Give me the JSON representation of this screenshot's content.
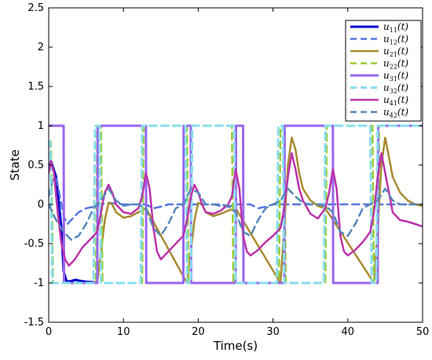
{
  "chart_data": {
    "type": "line",
    "title": "",
    "xlabel": "Time(s)",
    "ylabel": "State",
    "xlim": [
      0,
      50
    ],
    "ylim": [
      -1.5,
      2.5
    ],
    "xticks": [
      "0",
      "10",
      "20",
      "30",
      "40",
      "50"
    ],
    "yticks": [
      "-1.5",
      "-1",
      "-0.5",
      "0",
      "0.5",
      "1",
      "1.5",
      "2",
      "2.5"
    ],
    "grid": false,
    "legend_position": "top-right",
    "series": [
      {
        "name": "u11(t)",
        "label_base": "u",
        "label_sub": "11",
        "label_suffix": "(t)",
        "color": "#0000cc",
        "dash": "solid",
        "width": 3,
        "x": [
          0,
          0.3,
          1.0,
          1.7,
          2.0,
          2.4,
          2.8,
          3.2,
          3.6,
          4.0,
          5.0,
          6.0
        ],
        "y": [
          0.45,
          0.55,
          0.35,
          -0.3,
          -0.85,
          -0.98,
          -0.98,
          -0.97,
          -0.96,
          -0.97,
          -0.985,
          -0.99
        ]
      },
      {
        "name": "u12(t)",
        "label_base": "u",
        "label_sub": "12",
        "label_suffix": "(t)",
        "color": "#5577dd",
        "dash": "dashed",
        "width": 2.5,
        "x": [
          0,
          0.5,
          1.0,
          1.5,
          2.0,
          2.5,
          3.0,
          4.0,
          5.0,
          6.0,
          7.0,
          8.0,
          9.0,
          10.0,
          11.0,
          12.0,
          13.0,
          14.0,
          15.0,
          16.0,
          17.0,
          18.0,
          19.0,
          20.0,
          21.0,
          22.0,
          23.0,
          24.0,
          25.0,
          26.0,
          27.0,
          28.0,
          29.0,
          30.0,
          31.0,
          32.0,
          33.0,
          34.0,
          35.0,
          36.0,
          37.0,
          38.0,
          39.0,
          40.0,
          41.0,
          42.0,
          43.0,
          44.0,
          45.0,
          46.0,
          47.0,
          48.0,
          49.0,
          50.0
        ],
        "y": [
          0.1,
          0.3,
          0.35,
          0.1,
          -0.15,
          -0.25,
          -0.2,
          -0.1,
          -0.05,
          -0.03,
          0.0,
          0.02,
          0.01,
          0.0,
          0.0,
          0.0,
          0.0,
          -0.05,
          -0.03,
          0.0,
          0.0,
          0.0,
          0.0,
          0.0,
          0.0,
          0.0,
          -0.02,
          -0.03,
          0.0,
          0.0,
          0.0,
          -0.05,
          -0.03,
          0.0,
          0.0,
          0.0,
          0.0,
          0.0,
          0.0,
          0.0,
          0.0,
          0.0,
          0.0,
          0.0,
          0.0,
          0.0,
          0.0,
          0.0,
          0.0,
          0.0,
          0.0,
          0.0,
          0.0,
          0.0
        ]
      },
      {
        "name": "u21(t)",
        "label_base": "u",
        "label_sub": "21",
        "label_suffix": "(t)",
        "color": "#a88a30",
        "dash": "solid",
        "width": 2.5,
        "x": [
          6.5,
          7.0,
          7.5,
          8.0,
          8.5,
          9.0,
          10.0,
          11.0,
          12.0,
          13.0,
          18.5,
          19.0,
          19.5,
          20.0,
          20.5,
          21.0,
          22.0,
          23.0,
          24.0,
          25.0,
          31.0,
          31.5,
          32.0,
          32.5,
          33.0,
          33.5,
          34.0,
          35.0,
          36.0,
          37.0,
          43.5,
          44.0,
          44.5,
          45.0,
          45.5,
          46.0,
          47.0,
          48.0,
          49.0,
          50.0
        ],
        "y": [
          -1.0,
          -0.6,
          -0.2,
          0.02,
          0.0,
          -0.1,
          -0.17,
          -0.15,
          -0.1,
          -0.05,
          -1.0,
          -0.6,
          -0.2,
          0.02,
          0.0,
          -0.1,
          -0.15,
          -0.12,
          -0.08,
          -0.05,
          -1.0,
          -0.3,
          0.5,
          0.85,
          0.7,
          0.4,
          0.2,
          0.05,
          -0.02,
          -0.05,
          -1.0,
          -0.3,
          0.5,
          0.85,
          0.6,
          0.35,
          0.15,
          0.05,
          0.0,
          -0.02
        ]
      },
      {
        "name": "u22(t)",
        "label_base": "u",
        "label_sub": "22",
        "label_suffix": "(t)",
        "color": "#99cc33",
        "dash": "dashed",
        "width": 2.5,
        "x": [
          0,
          0.3,
          0.6,
          1.0,
          6.3,
          6.5,
          7.0,
          7.2,
          12.5,
          12.7,
          18.5,
          18.7,
          19.0,
          19.2,
          24.5,
          24.7,
          30.8,
          31.0,
          31.5,
          31.7,
          37.0,
          37.2,
          43.3,
          43.5,
          44.0,
          44.2,
          50.0
        ],
        "y": [
          0.8,
          0.8,
          -1.0,
          -1.0,
          -1.0,
          1.0,
          1.0,
          -1.0,
          -1.0,
          1.0,
          1.0,
          -1.0,
          -1.0,
          1.0,
          1.0,
          -1.0,
          -1.0,
          1.0,
          1.0,
          -1.0,
          -1.0,
          1.0,
          1.0,
          -1.0,
          -1.0,
          1.0,
          1.0
        ]
      },
      {
        "name": "u31(t)",
        "label_base": "u",
        "label_sub": "31",
        "label_suffix": "(t)",
        "color": "#9966ee",
        "dash": "solid",
        "width": 3,
        "x": [
          0,
          0.05,
          2.0,
          2.05,
          6.5,
          6.55,
          12.0,
          12.05,
          13.0,
          13.05,
          18.0,
          18.05,
          19.0,
          19.05,
          25.0,
          25.05,
          26.0,
          26.05,
          31.5,
          31.55,
          32.0,
          32.05,
          37.0,
          37.05,
          38.0,
          38.05,
          44.0,
          44.05,
          50.0
        ],
        "y": [
          1.0,
          1.0,
          1.0,
          -1.0,
          -1.0,
          1.0,
          1.0,
          1.0,
          1.0,
          -1.0,
          -1.0,
          1.0,
          1.0,
          -1.0,
          -1.0,
          1.0,
          1.0,
          -1.0,
          -1.0,
          1.0,
          1.0,
          1.0,
          1.0,
          1.0,
          1.0,
          -1.0,
          -1.0,
          1.0,
          1.0
        ]
      },
      {
        "name": "u32(t)",
        "label_base": "u",
        "label_sub": "32",
        "label_suffix": "(t)",
        "color": "#88ddee",
        "dash": "dashed",
        "width": 3,
        "x": [
          0,
          0.2,
          0.5,
          1.0,
          6.0,
          6.2,
          6.8,
          7.0,
          12.3,
          12.5,
          18.3,
          18.5,
          19.0,
          19.2,
          24.8,
          25.0,
          30.5,
          30.7,
          31.3,
          31.5,
          36.8,
          37.0,
          43.0,
          43.2,
          43.8,
          44.0,
          50.0
        ],
        "y": [
          0.8,
          0.8,
          -1.0,
          -1.0,
          -1.0,
          1.0,
          1.0,
          -1.0,
          -1.0,
          1.0,
          1.0,
          -1.0,
          -1.0,
          1.0,
          1.0,
          -1.0,
          -1.0,
          1.0,
          1.0,
          -1.0,
          -1.0,
          1.0,
          1.0,
          -1.0,
          -1.0,
          1.0,
          1.0
        ]
      },
      {
        "name": "u41(t)",
        "label_base": "u",
        "label_sub": "41",
        "label_suffix": "(t)",
        "color": "#bb33aa",
        "dash": "solid",
        "width": 2.5,
        "x": [
          0,
          0.3,
          0.7,
          1.2,
          1.7,
          2.2,
          2.7,
          3.5,
          4.5,
          5.5,
          6.5,
          7.0,
          7.5,
          8.0,
          8.5,
          9.0,
          10.0,
          11.0,
          12.0,
          12.5,
          13.0,
          13.5,
          14.0,
          14.5,
          15.0,
          16.0,
          17.0,
          18.0,
          18.5,
          19.0,
          19.5,
          20.0,
          20.5,
          21.0,
          22.0,
          23.0,
          24.0,
          24.5,
          25.0,
          25.5,
          26.0,
          26.5,
          27.0,
          28.0,
          29.0,
          30.0,
          31.0,
          31.5,
          32.0,
          32.5,
          33.0,
          33.5,
          34.0,
          35.0,
          36.0,
          37.0,
          37.5,
          38.0,
          38.5,
          39.0,
          39.5,
          40.0,
          41.0,
          42.0,
          43.0,
          43.5,
          44.0,
          44.5,
          45.0,
          45.5,
          46.0,
          47.0,
          48.0,
          49.0,
          50.0
        ],
        "y": [
          0.4,
          0.55,
          0.4,
          -0.1,
          -0.5,
          -0.7,
          -0.78,
          -0.7,
          -0.55,
          -0.45,
          -0.35,
          -0.1,
          0.15,
          0.25,
          0.15,
          0.0,
          -0.1,
          -0.12,
          -0.05,
          0.1,
          0.4,
          0.2,
          -0.3,
          -0.6,
          -0.7,
          -0.6,
          -0.5,
          -0.4,
          -0.2,
          0.1,
          0.25,
          0.15,
          0.0,
          -0.1,
          -0.12,
          -0.08,
          0.0,
          0.1,
          0.45,
          0.2,
          -0.4,
          -0.6,
          -0.65,
          -0.58,
          -0.48,
          -0.4,
          -0.3,
          -0.05,
          0.35,
          0.65,
          0.45,
          0.2,
          0.05,
          -0.12,
          -0.18,
          -0.05,
          0.15,
          0.45,
          0.2,
          -0.4,
          -0.6,
          -0.65,
          -0.58,
          -0.48,
          -0.35,
          -0.1,
          0.35,
          0.65,
          0.4,
          0.15,
          -0.1,
          -0.2,
          -0.22,
          -0.25,
          -0.28
        ]
      },
      {
        "name": "u42(t)",
        "label_base": "u",
        "label_sub": "42",
        "label_suffix": "(t)",
        "color": "#5588bb",
        "dash": "dashed",
        "width": 2.5,
        "x": [
          0,
          1.0,
          2.0,
          3.0,
          4.0,
          5.0,
          6.0,
          7.0,
          8.0,
          9.0,
          10.0,
          11.0,
          12.0,
          13.0,
          14.0,
          15.0,
          16.0,
          17.0,
          18.0,
          19.0,
          20.0,
          21.0,
          22.0,
          23.0,
          24.0,
          25.0,
          26.0,
          27.0,
          28.0,
          29.0,
          30.0,
          31.0,
          32.0,
          33.0,
          34.0,
          35.0,
          36.0,
          37.0,
          38.0,
          39.0,
          40.0,
          41.0,
          42.0,
          43.0,
          44.0,
          45.0,
          46.0,
          47.0,
          48.0,
          49.0,
          50.0
        ],
        "y": [
          0.0,
          -0.2,
          -0.35,
          -0.45,
          -0.4,
          -0.25,
          -0.05,
          0.05,
          0.2,
          0.05,
          -0.02,
          0.0,
          0.0,
          -0.05,
          -0.3,
          -0.4,
          -0.25,
          -0.05,
          0.0,
          0.2,
          0.15,
          0.0,
          0.0,
          0.0,
          -0.02,
          -0.1,
          -0.35,
          -0.4,
          -0.2,
          -0.05,
          0.0,
          0.05,
          0.2,
          0.1,
          0.02,
          0.0,
          0.0,
          -0.02,
          -0.1,
          -0.35,
          -0.4,
          -0.25,
          -0.05,
          0.0,
          0.05,
          0.2,
          0.05,
          0.0,
          0.0,
          0.0,
          0.0
        ]
      }
    ]
  }
}
